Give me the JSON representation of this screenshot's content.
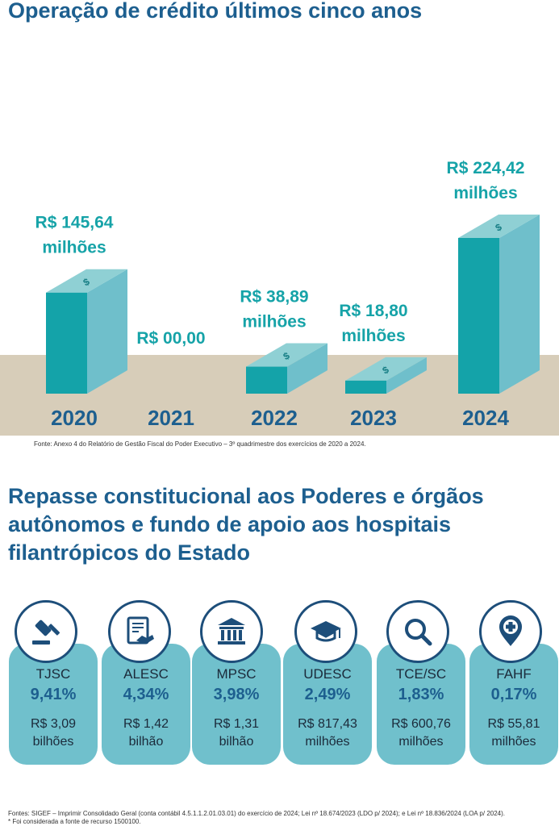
{
  "section1": {
    "title": "Operação de crédito últimos cinco anos",
    "source": "Fonte: Anexo 4 do Relatório de Gestão Fiscal do Poder Executivo – 3º quadrimestre dos exercícios de 2020 a 2024."
  },
  "chart_data": {
    "type": "bar",
    "title": "Operação de crédito últimos cinco anos",
    "categories": [
      "2020",
      "2021",
      "2022",
      "2023",
      "2024"
    ],
    "values": [
      145.64,
      0,
      38.89,
      18.8,
      224.42
    ],
    "labels": [
      [
        "R$ 145,64",
        "milhões"
      ],
      [
        "R$ 00,00"
      ],
      [
        "R$ 38,89",
        "milhões"
      ],
      [
        "R$ 18,80",
        "milhões"
      ],
      [
        "R$ 224,42",
        "milhões"
      ]
    ],
    "icon": "dollar-sign-icon",
    "colors": {
      "bar_front": "#14a3a9",
      "bar_side": "#6fbfcb",
      "bar_top": "#8fd0d4",
      "floor": "#d7cdb9",
      "year": "#1d5f8f",
      "label": "#16a3a8"
    }
  },
  "section2": {
    "title": "Repasse constitucional aos Poderes e órgãos autônomos e fundo de apoio aos hospitais filantrópicos do Estado",
    "cards": [
      {
        "name": "TJSC",
        "percent": "9,41%",
        "value1": "R$ 3,09",
        "value2": "bilhões",
        "icon": "gavel-icon"
      },
      {
        "name": "ALESC",
        "percent": "4,34%",
        "value1": "R$ 1,42",
        "value2": "bilhão",
        "icon": "document-handshake-icon"
      },
      {
        "name": "MPSC",
        "percent": "3,98%",
        "value1": "R$ 1,31",
        "value2": "bilhão",
        "icon": "courthouse-icon"
      },
      {
        "name": "UDESC",
        "percent": "2,49%",
        "value1": "R$ 817,43",
        "value2": "milhões",
        "icon": "graduation-cap-icon"
      },
      {
        "name": "TCE/SC",
        "percent": "1,83%",
        "value1": "R$ 600,76",
        "value2": "milhões",
        "icon": "magnifier-icon"
      },
      {
        "name": "FAHF",
        "percent": "0,17%",
        "value1": "R$ 55,81",
        "value2": "milhões",
        "icon": "medical-cross-pin-icon"
      }
    ],
    "notes": [
      "Fontes: SIGEF – Imprimir Consolidado Geral (conta contábil 4.5.1.1.2.01.03.01) do exercício de 2024; Lei nº 18.674/2023 (LDO p/ 2024); e Lei nº 18.836/2024 (LOA p/ 2024).",
      "* Foi considerada a fonte de recurso 1500100."
    ]
  }
}
